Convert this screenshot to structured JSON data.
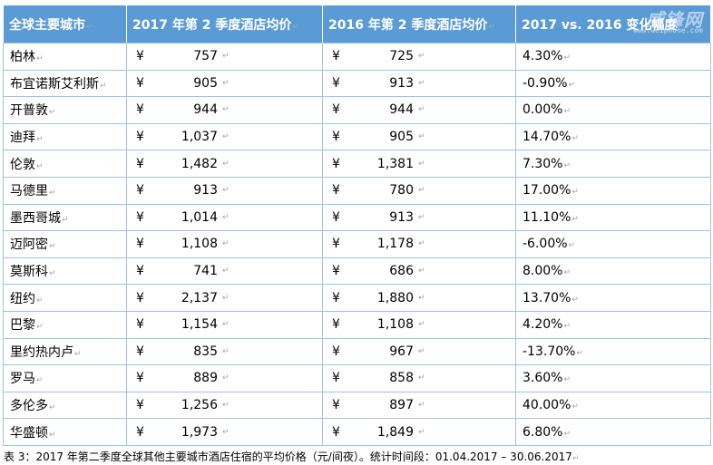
{
  "table": {
    "headers": [
      "全球主要城市",
      "2017 年第 2 季度酒店均价",
      "2016 年第 2 季度酒店均价",
      "2017 vs. 2016 变化幅度"
    ],
    "currency_symbol": "¥",
    "rows": [
      {
        "city": "柏林",
        "p2017": "757",
        "p2016": "725",
        "change": "4.30%"
      },
      {
        "city": "布宜诺斯艾利斯",
        "p2017": "905",
        "p2016": "913",
        "change": "-0.90%"
      },
      {
        "city": "开普敦",
        "p2017": "944",
        "p2016": "944",
        "change": "0.00%"
      },
      {
        "city": "迪拜",
        "p2017": "1,037",
        "p2016": "905",
        "change": "14.70%"
      },
      {
        "city": "伦敦",
        "p2017": "1,482",
        "p2016": "1,381",
        "change": "7.30%"
      },
      {
        "city": "马德里",
        "p2017": "913",
        "p2016": "780",
        "change": "17.00%"
      },
      {
        "city": "墨西哥城",
        "p2017": "1,014",
        "p2016": "913",
        "change": "11.10%"
      },
      {
        "city": "迈阿密",
        "p2017": "1,108",
        "p2016": "1,178",
        "change": "-6.00%"
      },
      {
        "city": "莫斯科",
        "p2017": "741",
        "p2016": "686",
        "change": "8.00%"
      },
      {
        "city": "纽约",
        "p2017": "2,137",
        "p2016": "1,880",
        "change": "13.70%"
      },
      {
        "city": "巴黎",
        "p2017": "1,154",
        "p2016": "1,108",
        "change": "4.20%"
      },
      {
        "city": "里约热内卢",
        "p2017": "835",
        "p2016": "967",
        "change": "-13.70%"
      },
      {
        "city": "罗马",
        "p2017": "889",
        "p2016": "858",
        "change": "3.60%"
      },
      {
        "city": "多伦多",
        "p2017": "1,256",
        "p2016": "897",
        "change": "40.00%"
      },
      {
        "city": "华盛顿",
        "p2017": "1,973",
        "p2016": "1,849",
        "change": "6.80%"
      }
    ]
  },
  "caption": "表 3：2017 年第二季度全球其他主要城市酒店住宿的平均价格（元/间夜）。统计时间段：01.04.2017 – 30.06.2017",
  "watermark": {
    "text": "威锋网",
    "sub": "www.weiphone.com"
  },
  "paragraph_mark": "↵",
  "colors": {
    "header_bg": "#5b9bd5",
    "header_text": "#ffffff",
    "border": "#9dc3e6"
  }
}
